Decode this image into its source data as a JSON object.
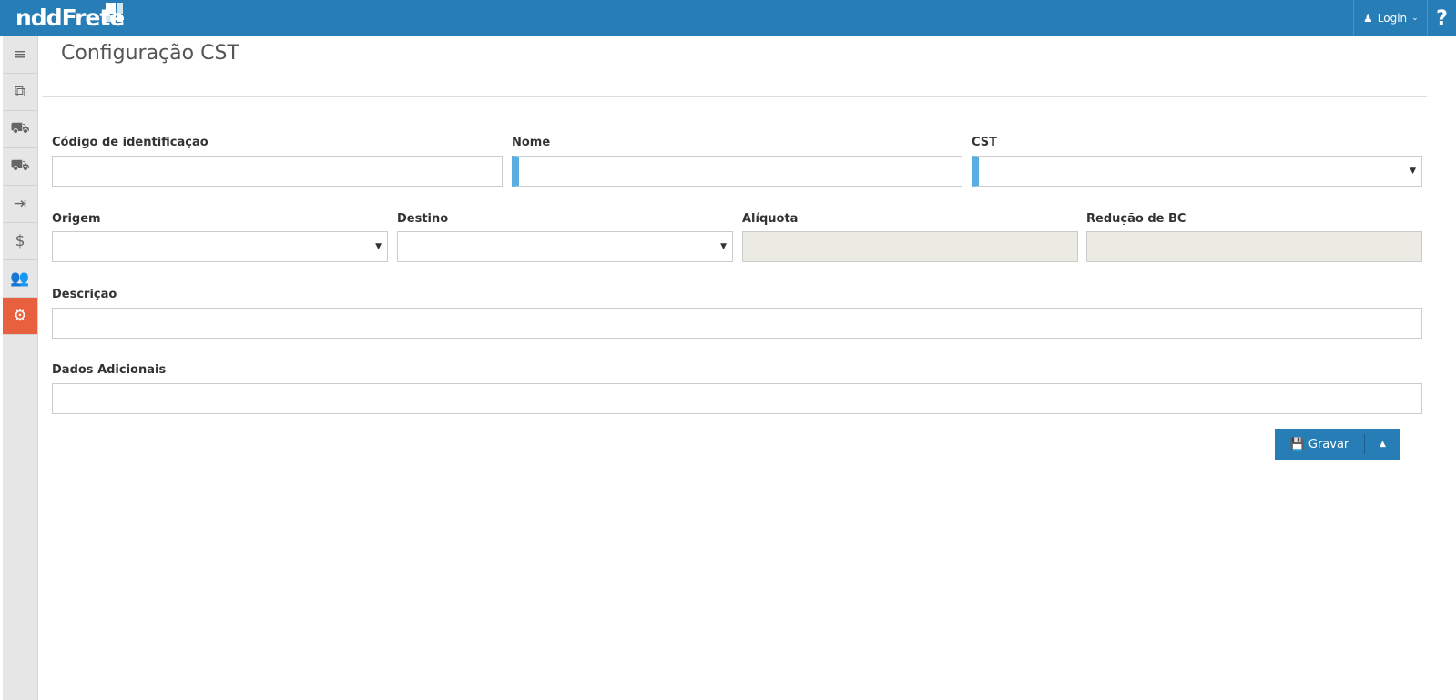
{
  "header": {
    "logo": "nddFrete",
    "login_label": "Login",
    "help_label": "?"
  },
  "sidebar": {
    "items": [
      {
        "icon": "menu-icon",
        "glyph": "≡"
      },
      {
        "icon": "documents-icon",
        "glyph": "⧉"
      },
      {
        "icon": "truck-icon",
        "glyph": "⛟"
      },
      {
        "icon": "truck-outline-icon",
        "glyph": "⛟"
      },
      {
        "icon": "export-icon",
        "glyph": "⇥"
      },
      {
        "icon": "payment-icon",
        "glyph": "$"
      },
      {
        "icon": "users-icon",
        "glyph": "👥"
      },
      {
        "icon": "settings-icon",
        "glyph": "⚙",
        "active": true
      }
    ]
  },
  "page": {
    "title": "Configuração CST"
  },
  "form": {
    "codigo": {
      "label": "Código de identificação",
      "value": ""
    },
    "nome": {
      "label": "Nome",
      "value": ""
    },
    "cst": {
      "label": "CST",
      "value": ""
    },
    "origem": {
      "label": "Origem",
      "value": ""
    },
    "destino": {
      "label": "Destino",
      "value": ""
    },
    "aliquota": {
      "label": "Alíquota",
      "value": ""
    },
    "reducao": {
      "label": "Redução de BC",
      "value": ""
    },
    "descricao": {
      "label": "Descrição",
      "value": ""
    },
    "dados": {
      "label": "Dados Adicionais",
      "value": ""
    }
  },
  "actions": {
    "save_label": "Gravar"
  },
  "colors": {
    "brand": "#277db5",
    "active": "#e9603f",
    "required": "#5aade0"
  }
}
